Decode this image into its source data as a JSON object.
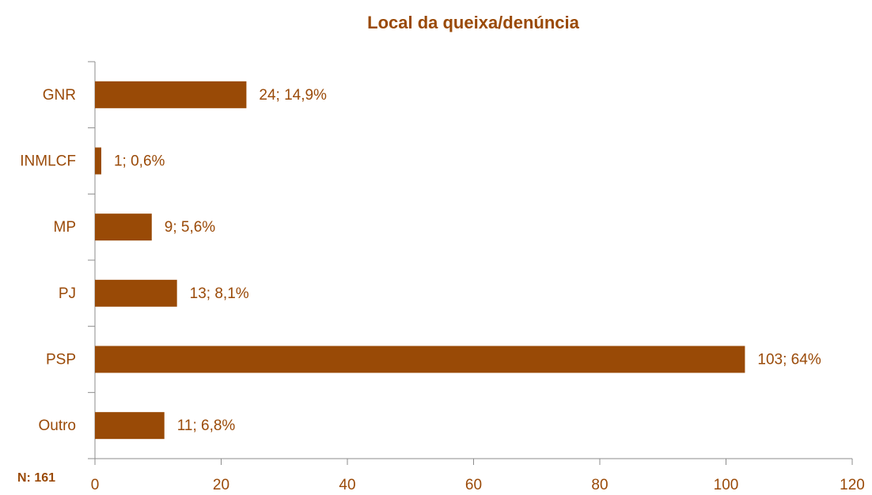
{
  "chart_data": {
    "type": "bar",
    "orientation": "horizontal",
    "title": "Local da queixa/denúncia",
    "categories": [
      "GNR",
      "INMLCF",
      "MP",
      "PJ",
      "PSP",
      "Outro"
    ],
    "values": [
      24,
      1,
      9,
      13,
      103,
      11
    ],
    "value_labels": [
      "24; 14,9%",
      "1; 0,6%",
      "9; 5,6%",
      "13; 8,1%",
      "103; 64%",
      "11; 6,8%"
    ],
    "color": "#994a06",
    "xlim": [
      0,
      120
    ],
    "xticks": [
      0,
      20,
      40,
      60,
      80,
      100,
      120
    ],
    "annotation": "N: 161"
  }
}
